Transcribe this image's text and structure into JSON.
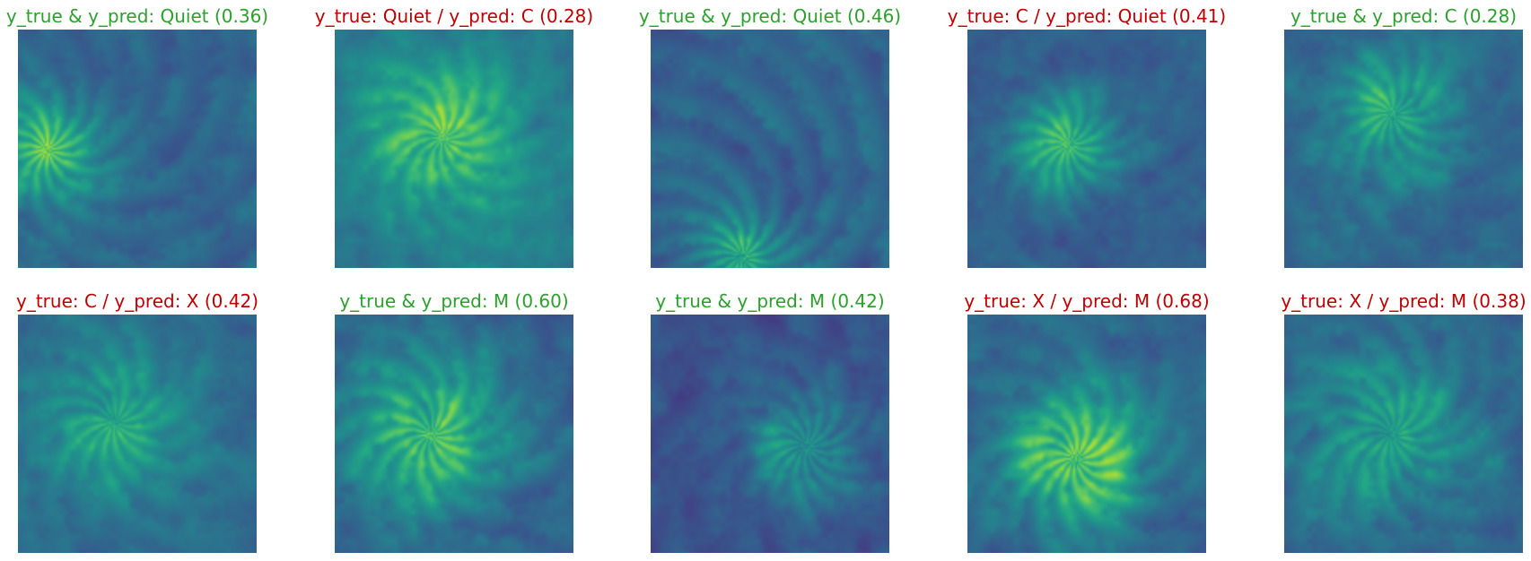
{
  "colors": {
    "correct": "#2ca02c",
    "incorrect": "#c00000",
    "colormap": "viridis"
  },
  "panels": [
    {
      "title": "y_true & y_pred: Quiet (0.36)",
      "correct": true
    },
    {
      "title": "y_true: Quiet / y_pred: C (0.28)",
      "correct": false
    },
    {
      "title": "y_true & y_pred: Quiet (0.46)",
      "correct": true
    },
    {
      "title": "y_true: C / y_pred: Quiet (0.41)",
      "correct": false
    },
    {
      "title": "y_true & y_pred: C (0.28)",
      "correct": true
    },
    {
      "title": "y_true: C / y_pred: X (0.42)",
      "correct": false
    },
    {
      "title": "y_true & y_pred: M (0.60)",
      "correct": true
    },
    {
      "title": "y_true & y_pred: M (0.42)",
      "correct": true
    },
    {
      "title": "y_true: X / y_pred: M (0.68)",
      "correct": false
    },
    {
      "title": "y_true: X / y_pred: M (0.38)",
      "correct": false
    }
  ]
}
